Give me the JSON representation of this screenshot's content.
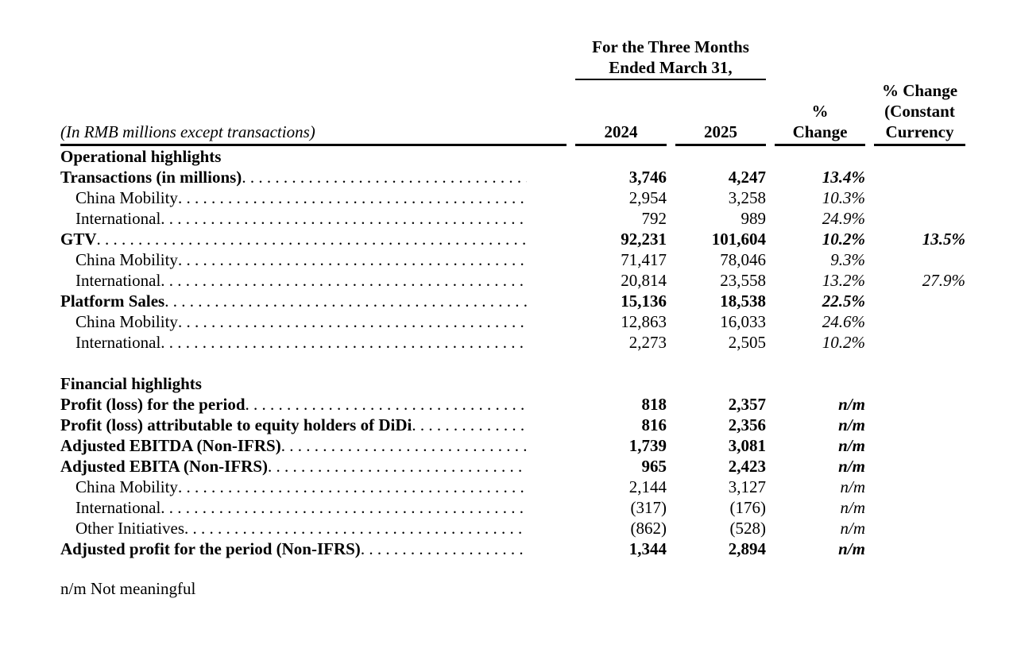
{
  "colors": {
    "background": "#ffffff",
    "text": "#000000",
    "rule": "#000000"
  },
  "table": {
    "group_header_line1": "For the Three Months",
    "group_header_line2": "Ended March 31,",
    "label_header": "(In RMB millions except transactions)",
    "col_2024": "2024",
    "col_2025": "2025",
    "pct_change_line1": "%",
    "pct_change_line2": "Change",
    "cc_line1": "% Change",
    "cc_line2": "(Constant",
    "cc_line3": "Currency",
    "rows": [
      {
        "label": "Operational highlights",
        "section": true
      },
      {
        "label": "Transactions (in millions)",
        "bold": true,
        "v2024": "3,746",
        "v2025": "4,247",
        "pct": "13.4%",
        "cc": ""
      },
      {
        "label": "China Mobility",
        "indent": true,
        "v2024": "2,954",
        "v2025": "3,258",
        "pct": "10.3%",
        "cc": ""
      },
      {
        "label": "International",
        "indent": true,
        "v2024": "792",
        "v2025": "989",
        "pct": "24.9%",
        "cc": ""
      },
      {
        "label": "GTV",
        "bold": true,
        "v2024": "92,231",
        "v2025": "101,604",
        "pct": "10.2%",
        "cc": "13.5%"
      },
      {
        "label": "China Mobility",
        "indent": true,
        "v2024": "71,417",
        "v2025": "78,046",
        "pct": "9.3%",
        "cc": ""
      },
      {
        "label": "International",
        "indent": true,
        "v2024": "20,814",
        "v2025": "23,558",
        "pct": "13.2%",
        "cc": "27.9%"
      },
      {
        "label": "Platform Sales",
        "bold": true,
        "v2024": "15,136",
        "v2025": "18,538",
        "pct": "22.5%",
        "cc": ""
      },
      {
        "label": "China Mobility",
        "indent": true,
        "v2024": "12,863",
        "v2025": "16,033",
        "pct": "24.6%",
        "cc": ""
      },
      {
        "label": "International",
        "indent": true,
        "v2024": "2,273",
        "v2025": "2,505",
        "pct": "10.2%",
        "cc": ""
      },
      {
        "blank": true
      },
      {
        "label": "Financial highlights",
        "section": true
      },
      {
        "label": "Profit (loss) for the period",
        "bold": true,
        "v2024": "818",
        "v2025": "2,357",
        "pct": "n/m",
        "cc": ""
      },
      {
        "label": "Profit (loss) attributable to equity holders of DiDi",
        "bold": true,
        "v2024": "816",
        "v2025": "2,356",
        "pct": "n/m",
        "cc": ""
      },
      {
        "label": "Adjusted EBITDA (Non-IFRS)",
        "bold": true,
        "v2024": "1,739",
        "v2025": "3,081",
        "pct": "n/m",
        "cc": ""
      },
      {
        "label": "Adjusted EBITA (Non-IFRS)",
        "bold": true,
        "v2024": "965",
        "v2025": "2,423",
        "pct": "n/m",
        "cc": ""
      },
      {
        "label": "China Mobility",
        "indent": true,
        "v2024": "2,144",
        "v2025": "3,127",
        "pct": "n/m",
        "cc": ""
      },
      {
        "label": "International",
        "indent": true,
        "v2024": "(317)",
        "v2025": "(176)",
        "pct": "n/m",
        "cc": ""
      },
      {
        "label": "Other Initiatives",
        "indent": true,
        "v2024": "(862)",
        "v2025": "(528)",
        "pct": "n/m",
        "cc": ""
      },
      {
        "label": "Adjusted profit for the period (Non-IFRS)",
        "bold": true,
        "v2024": "1,344",
        "v2025": "2,894",
        "pct": "n/m",
        "cc": ""
      }
    ],
    "footnote": "n/m Not meaningful"
  }
}
